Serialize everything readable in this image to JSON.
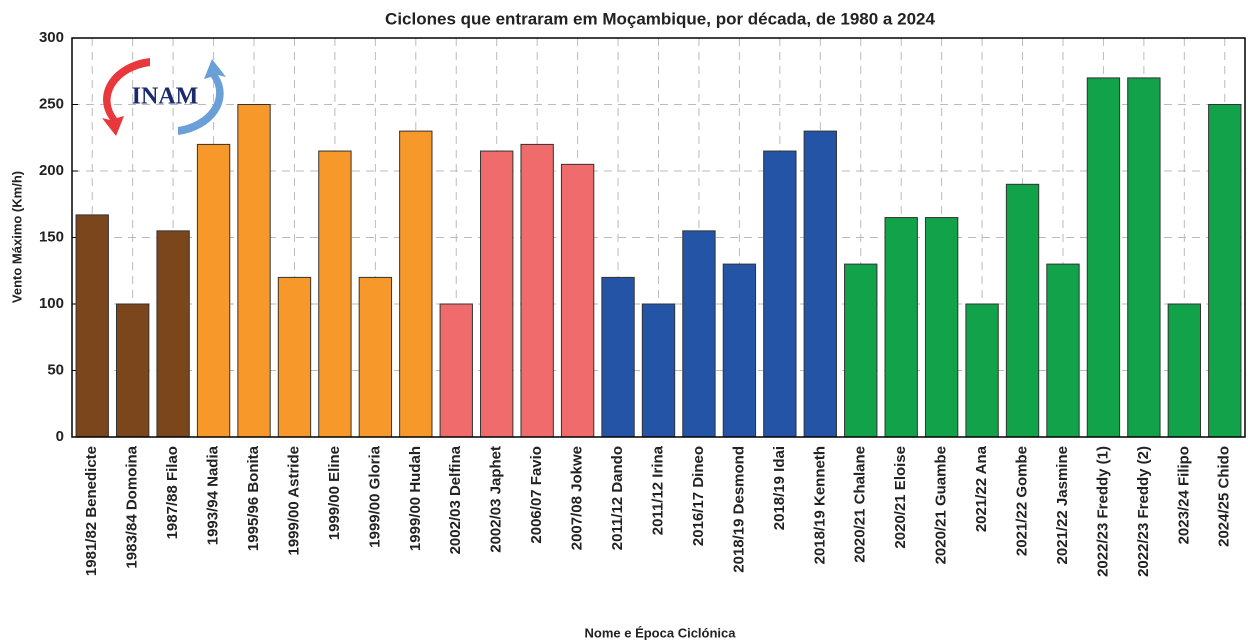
{
  "chart_data": {
    "type": "bar",
    "title": "Ciclones que entraram em Moçambique, por década, de 1980 a 2024",
    "logo": "INAM",
    "x_label": "Nome e Época Ciclónica",
    "y_label": "Vento Máximo (Km/h)",
    "categories": [
      "1981/82 Benedicte",
      "1983/84 Domoina",
      "1987/88 Filao",
      "1993/94 Nadia",
      "1995/96 Bonita",
      "1999/00 Astride",
      "1999/00 Eline",
      "1999/00 Gloria",
      "1999/00 Hudah",
      "2002/03 Delfina",
      "2002/03 Japhet",
      "2006/07 Favio",
      "2007/08 Jokwe",
      "2011/12 Dando",
      "2011/12 Irina",
      "2016/17 Dineo",
      "2018/19 Desmond",
      "2018/19 Idai",
      "2018/19 Kenneth",
      "2020/21 Chalane",
      "2020/21 Eloise",
      "2020/21 Guambe",
      "2021/22 Ana",
      "2021/22 Gombe",
      "2021/22 Jasmine",
      "2022/23 Freddy (1)",
      "2022/23 Freddy (2)",
      "2023/24 Filipo",
      "2024/25 Chido"
    ],
    "values": [
      167,
      100,
      155,
      220,
      250,
      120,
      215,
      120,
      230,
      100,
      215,
      220,
      205,
      120,
      100,
      155,
      130,
      215,
      230,
      130,
      165,
      165,
      100,
      190,
      130,
      270,
      270,
      100,
      250
    ],
    "colors": [
      "#7b461b",
      "#7b461b",
      "#7b461b",
      "#f7992a",
      "#f7992a",
      "#f7992a",
      "#f7992a",
      "#f7992a",
      "#f7992a",
      "#f06c6c",
      "#f06c6c",
      "#f06c6c",
      "#f06c6c",
      "#2354a6",
      "#2354a6",
      "#2354a6",
      "#2354a6",
      "#2354a6",
      "#2354a6",
      "#11a24a",
      "#11a24a",
      "#11a24a",
      "#11a24a",
      "#11a24a",
      "#11a24a",
      "#11a24a",
      "#11a24a",
      "#11a24a",
      "#11a24a"
    ],
    "ylim": [
      0,
      300
    ],
    "yticks": [
      0,
      50,
      100,
      150,
      200,
      250,
      300
    ],
    "grid": true
  }
}
